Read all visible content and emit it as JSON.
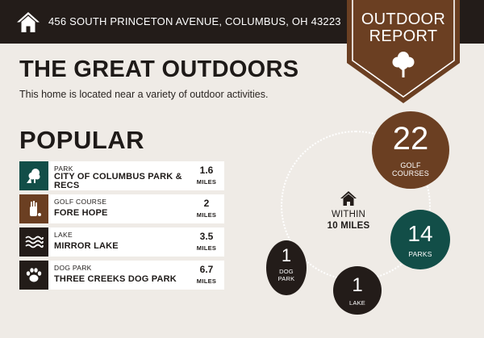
{
  "header": {
    "address": "456 SOUTH PRINCETON AVENUE, COLUMBUS, OH 43223",
    "home_icon": "house-icon"
  },
  "banner": {
    "line1": "OUTDOOR",
    "line2": "REPORT",
    "icon": "tree-icon"
  },
  "intro": {
    "title": "THE GREAT OUTDOORS",
    "subtitle": "This home is located near a variety of outdoor activities."
  },
  "popular": {
    "heading": "POPULAR",
    "items": [
      {
        "category": "PARK",
        "name_line1": "CITY OF COLUMBUS PARK &",
        "name_line2": "RECS",
        "distance": "1.6",
        "unit": "MILES",
        "icon": "park-icon",
        "icon_color": "#124e48"
      },
      {
        "category": "GOLF COURSE",
        "name_line1": "FORE HOPE",
        "distance": "2",
        "unit": "MILES",
        "icon": "golf-bag-icon",
        "icon_color": "#6b3f22"
      },
      {
        "category": "LAKE",
        "name_line1": "MIRROR LAKE",
        "distance": "3.5",
        "unit": "MILES",
        "icon": "waves-icon",
        "icon_color": "#231c19"
      },
      {
        "category": "DOG PARK",
        "name_line1": "THREE CREEKS DOG PARK",
        "distance": "6.7",
        "unit": "MILES",
        "icon": "paw-icon",
        "icon_color": "#231c19"
      }
    ]
  },
  "radius": {
    "line1": "WITHIN",
    "line2": "10 MILES",
    "icon": "house-icon"
  },
  "counts": {
    "golf": {
      "value": "22",
      "label_line1": "GOLF",
      "label_line2": "COURSES",
      "color": "#6b3f22"
    },
    "parks": {
      "value": "14",
      "label_line1": "PARKS",
      "color": "#124e48"
    },
    "dog": {
      "value": "1",
      "label_line1": "DOG",
      "label_line2": "PARK",
      "color": "#231c19"
    },
    "lake": {
      "value": "1",
      "label_line1": "LAKE",
      "color": "#231c19"
    }
  }
}
